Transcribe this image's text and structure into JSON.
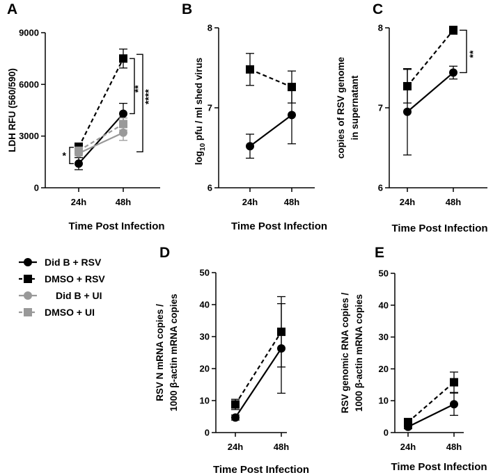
{
  "legend": {
    "items": [
      {
        "label": "Did B + RSV",
        "color": "#000000",
        "marker": "circle",
        "dash": false
      },
      {
        "label": "DMSO + RSV",
        "color": "#000000",
        "marker": "square",
        "dash": true
      },
      {
        "label": "Did B +  UI",
        "color": "#999999",
        "marker": "circle",
        "dash": false
      },
      {
        "label": "DMSO + UI",
        "color": "#999999",
        "marker": "square",
        "dash": true
      }
    ]
  },
  "chart_data": [
    {
      "panel": "A",
      "type": "line",
      "xlabel": "Time Post Infection",
      "ylabel": "LDH RFU (560/590)",
      "categories": [
        "24h",
        "48h"
      ],
      "ylim": [
        0,
        9000
      ],
      "yticks": [
        0,
        3000,
        6000,
        9000
      ],
      "series": [
        {
          "name": "Did B + RSV",
          "values": [
            1400,
            4300
          ],
          "errors": [
            350,
            600
          ]
        },
        {
          "name": "DMSO + RSV",
          "values": [
            2350,
            7500
          ],
          "errors": [
            250,
            550
          ]
        },
        {
          "name": "Did B +  UI",
          "values": [
            2000,
            3200
          ],
          "errors": [
            150,
            450
          ]
        },
        {
          "name": "DMSO + UI",
          "values": [
            2150,
            3700
          ],
          "errors": [
            150,
            350
          ]
        }
      ],
      "annotations": [
        "*",
        "**",
        "****"
      ]
    },
    {
      "panel": "B",
      "type": "line",
      "xlabel": "Time Post Infection",
      "ylabel_prefix": "log",
      "ylabel_sub": "10",
      "ylabel_rest": " pfu / ml shed virus",
      "categories": [
        "24h",
        "48h"
      ],
      "ylim": [
        6,
        8
      ],
      "yticks": [
        6,
        7,
        8
      ],
      "series": [
        {
          "name": "Did B + RSV",
          "values": [
            6.52,
            6.91
          ],
          "errors": [
            0.15,
            0.36
          ]
        },
        {
          "name": "DMSO + RSV",
          "values": [
            7.48,
            7.26
          ],
          "errors": [
            0.2,
            0.2
          ]
        }
      ]
    },
    {
      "panel": "C",
      "type": "line",
      "xlabel": "Time Post Infection",
      "ylabel_lines": [
        "copies of RSV genome",
        "in supernatant"
      ],
      "categories": [
        "24h",
        "48h"
      ],
      "ylim": [
        6,
        8
      ],
      "yticks": [
        6,
        7,
        8
      ],
      "series": [
        {
          "name": "Did B + RSV",
          "values": [
            6.95,
            7.44
          ],
          "errors": [
            0.54,
            0.08
          ]
        },
        {
          "name": "DMSO + RSV",
          "values": [
            7.27,
            7.97
          ],
          "errors": [
            0.21,
            0.05
          ]
        }
      ],
      "annotations": [
        "**"
      ]
    },
    {
      "panel": "D",
      "type": "line",
      "xlabel": "Time Post Infection",
      "ylabel_lines": [
        "RSV N mRNA copies /",
        "1000 β-actin mRNA copies"
      ],
      "categories": [
        "24h",
        "48h"
      ],
      "ylim": [
        0,
        50
      ],
      "yticks": [
        0,
        10,
        20,
        30,
        40,
        50
      ],
      "series": [
        {
          "name": "Did B + RSV",
          "values": [
            4.7,
            26.3
          ],
          "errors": [
            0.8,
            14
          ]
        },
        {
          "name": "DMSO + RSV",
          "values": [
            8.8,
            31.5
          ],
          "errors": [
            1.6,
            11
          ]
        }
      ]
    },
    {
      "panel": "E",
      "type": "line",
      "xlabel": "Time Post Infection",
      "ylabel_lines": [
        "RSV genomic RNA copies /",
        "1000 β-actin mRNA copies"
      ],
      "categories": [
        "24h",
        "48h"
      ],
      "ylim": [
        0,
        50
      ],
      "yticks": [
        0,
        10,
        20,
        30,
        40,
        50
      ],
      "series": [
        {
          "name": "Did B + RSV",
          "values": [
            1.8,
            8.9
          ],
          "errors": [
            0.6,
            3.5
          ]
        },
        {
          "name": "DMSO + RSV",
          "values": [
            3.3,
            15.8
          ],
          "errors": [
            0.6,
            3.2
          ]
        }
      ]
    }
  ]
}
